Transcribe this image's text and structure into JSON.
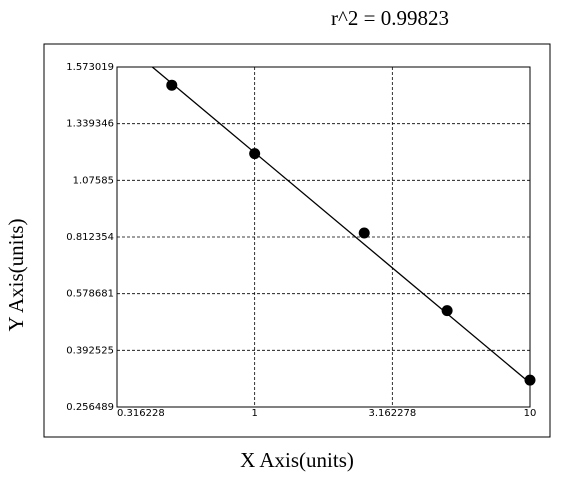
{
  "chart_data": {
    "type": "scatter",
    "title": "r^2 = 0.99823",
    "x_label": "X Axis(units)",
    "y_label": "Y Axis(units)",
    "xscale": "log",
    "series": [
      {
        "x": [
          0.5,
          1,
          2.5,
          5,
          10
        ],
        "values": [
          1.498,
          1.2,
          0.831,
          0.523,
          0.321
        ],
        "color": "#000000"
      }
    ],
    "fit": {
      "x": [
        0.425,
        10
      ],
      "values": [
        1.573019,
        0.314
      ],
      "color": "#000000"
    },
    "xlim": [
      0.316228,
      10
    ],
    "xticks": [
      0.316228,
      1,
      3.162278,
      10
    ],
    "ylim": [
      0.256489,
      1.573019
    ],
    "yticks": [
      0.256489,
      0.392525,
      0.578681,
      0.812354,
      1.07585,
      1.339346,
      1.573019
    ],
    "grid": true
  }
}
